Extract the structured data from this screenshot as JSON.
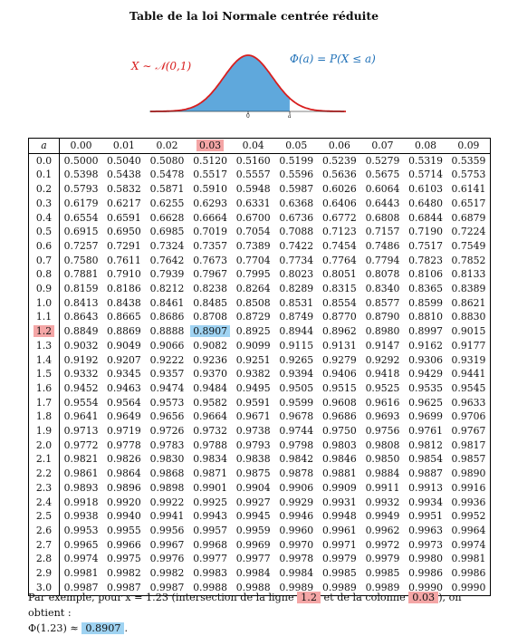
{
  "title": "Table de la loi Normale centrée réduite",
  "figure": {
    "x_label": "X ∼ 𝒩(0,1)",
    "phi_label": "Φ(a) = P(X ≤ a)",
    "tick_zero": "0",
    "tick_a": "a",
    "colors": {
      "curve": "#d81e1e",
      "fill": "#5fa8dc",
      "phi_text": "#2272b8"
    }
  },
  "table": {
    "corner": "a",
    "columns": [
      "0.00",
      "0.01",
      "0.02",
      "0.03",
      "0.04",
      "0.05",
      "0.06",
      "0.07",
      "0.08",
      "0.09"
    ],
    "highlight": {
      "row": "1.2",
      "col": "0.03",
      "row_color": "#f4a6a6",
      "cell_color": "#9fd3f2"
    },
    "rows": [
      {
        "a": "0.0",
        "v": [
          "0.5000",
          "0.5040",
          "0.5080",
          "0.5120",
          "0.5160",
          "0.5199",
          "0.5239",
          "0.5279",
          "0.5319",
          "0.5359"
        ]
      },
      {
        "a": "0.1",
        "v": [
          "0.5398",
          "0.5438",
          "0.5478",
          "0.5517",
          "0.5557",
          "0.5596",
          "0.5636",
          "0.5675",
          "0.5714",
          "0.5753"
        ]
      },
      {
        "a": "0.2",
        "v": [
          "0.5793",
          "0.5832",
          "0.5871",
          "0.5910",
          "0.5948",
          "0.5987",
          "0.6026",
          "0.6064",
          "0.6103",
          "0.6141"
        ]
      },
      {
        "a": "0.3",
        "v": [
          "0.6179",
          "0.6217",
          "0.6255",
          "0.6293",
          "0.6331",
          "0.6368",
          "0.6406",
          "0.6443",
          "0.6480",
          "0.6517"
        ]
      },
      {
        "a": "0.4",
        "v": [
          "0.6554",
          "0.6591",
          "0.6628",
          "0.6664",
          "0.6700",
          "0.6736",
          "0.6772",
          "0.6808",
          "0.6844",
          "0.6879"
        ]
      },
      {
        "a": "0.5",
        "v": [
          "0.6915",
          "0.6950",
          "0.6985",
          "0.7019",
          "0.7054",
          "0.7088",
          "0.7123",
          "0.7157",
          "0.7190",
          "0.7224"
        ]
      },
      {
        "a": "0.6",
        "v": [
          "0.7257",
          "0.7291",
          "0.7324",
          "0.7357",
          "0.7389",
          "0.7422",
          "0.7454",
          "0.7486",
          "0.7517",
          "0.7549"
        ]
      },
      {
        "a": "0.7",
        "v": [
          "0.7580",
          "0.7611",
          "0.7642",
          "0.7673",
          "0.7704",
          "0.7734",
          "0.7764",
          "0.7794",
          "0.7823",
          "0.7852"
        ]
      },
      {
        "a": "0.8",
        "v": [
          "0.7881",
          "0.7910",
          "0.7939",
          "0.7967",
          "0.7995",
          "0.8023",
          "0.8051",
          "0.8078",
          "0.8106",
          "0.8133"
        ]
      },
      {
        "a": "0.9",
        "v": [
          "0.8159",
          "0.8186",
          "0.8212",
          "0.8238",
          "0.8264",
          "0.8289",
          "0.8315",
          "0.8340",
          "0.8365",
          "0.8389"
        ]
      },
      {
        "a": "1.0",
        "v": [
          "0.8413",
          "0.8438",
          "0.8461",
          "0.8485",
          "0.8508",
          "0.8531",
          "0.8554",
          "0.8577",
          "0.8599",
          "0.8621"
        ]
      },
      {
        "a": "1.1",
        "v": [
          "0.8643",
          "0.8665",
          "0.8686",
          "0.8708",
          "0.8729",
          "0.8749",
          "0.8770",
          "0.8790",
          "0.8810",
          "0.8830"
        ]
      },
      {
        "a": "1.2",
        "v": [
          "0.8849",
          "0.8869",
          "0.8888",
          "0.8907",
          "0.8925",
          "0.8944",
          "0.8962",
          "0.8980",
          "0.8997",
          "0.9015"
        ]
      },
      {
        "a": "1.3",
        "v": [
          "0.9032",
          "0.9049",
          "0.9066",
          "0.9082",
          "0.9099",
          "0.9115",
          "0.9131",
          "0.9147",
          "0.9162",
          "0.9177"
        ]
      },
      {
        "a": "1.4",
        "v": [
          "0.9192",
          "0.9207",
          "0.9222",
          "0.9236",
          "0.9251",
          "0.9265",
          "0.9279",
          "0.9292",
          "0.9306",
          "0.9319"
        ]
      },
      {
        "a": "1.5",
        "v": [
          "0.9332",
          "0.9345",
          "0.9357",
          "0.9370",
          "0.9382",
          "0.9394",
          "0.9406",
          "0.9418",
          "0.9429",
          "0.9441"
        ]
      },
      {
        "a": "1.6",
        "v": [
          "0.9452",
          "0.9463",
          "0.9474",
          "0.9484",
          "0.9495",
          "0.9505",
          "0.9515",
          "0.9525",
          "0.9535",
          "0.9545"
        ]
      },
      {
        "a": "1.7",
        "v": [
          "0.9554",
          "0.9564",
          "0.9573",
          "0.9582",
          "0.9591",
          "0.9599",
          "0.9608",
          "0.9616",
          "0.9625",
          "0.9633"
        ]
      },
      {
        "a": "1.8",
        "v": [
          "0.9641",
          "0.9649",
          "0.9656",
          "0.9664",
          "0.9671",
          "0.9678",
          "0.9686",
          "0.9693",
          "0.9699",
          "0.9706"
        ]
      },
      {
        "a": "1.9",
        "v": [
          "0.9713",
          "0.9719",
          "0.9726",
          "0.9732",
          "0.9738",
          "0.9744",
          "0.9750",
          "0.9756",
          "0.9761",
          "0.9767"
        ]
      },
      {
        "a": "2.0",
        "v": [
          "0.9772",
          "0.9778",
          "0.9783",
          "0.9788",
          "0.9793",
          "0.9798",
          "0.9803",
          "0.9808",
          "0.9812",
          "0.9817"
        ]
      },
      {
        "a": "2.1",
        "v": [
          "0.9821",
          "0.9826",
          "0.9830",
          "0.9834",
          "0.9838",
          "0.9842",
          "0.9846",
          "0.9850",
          "0.9854",
          "0.9857"
        ]
      },
      {
        "a": "2.2",
        "v": [
          "0.9861",
          "0.9864",
          "0.9868",
          "0.9871",
          "0.9875",
          "0.9878",
          "0.9881",
          "0.9884",
          "0.9887",
          "0.9890"
        ]
      },
      {
        "a": "2.3",
        "v": [
          "0.9893",
          "0.9896",
          "0.9898",
          "0.9901",
          "0.9904",
          "0.9906",
          "0.9909",
          "0.9911",
          "0.9913",
          "0.9916"
        ]
      },
      {
        "a": "2.4",
        "v": [
          "0.9918",
          "0.9920",
          "0.9922",
          "0.9925",
          "0.9927",
          "0.9929",
          "0.9931",
          "0.9932",
          "0.9934",
          "0.9936"
        ]
      },
      {
        "a": "2.5",
        "v": [
          "0.9938",
          "0.9940",
          "0.9941",
          "0.9943",
          "0.9945",
          "0.9946",
          "0.9948",
          "0.9949",
          "0.9951",
          "0.9952"
        ]
      },
      {
        "a": "2.6",
        "v": [
          "0.9953",
          "0.9955",
          "0.9956",
          "0.9957",
          "0.9959",
          "0.9960",
          "0.9961",
          "0.9962",
          "0.9963",
          "0.9964"
        ]
      },
      {
        "a": "2.7",
        "v": [
          "0.9965",
          "0.9966",
          "0.9967",
          "0.9968",
          "0.9969",
          "0.9970",
          "0.9971",
          "0.9972",
          "0.9973",
          "0.9974"
        ]
      },
      {
        "a": "2.8",
        "v": [
          "0.9974",
          "0.9975",
          "0.9976",
          "0.9977",
          "0.9977",
          "0.9978",
          "0.9979",
          "0.9979",
          "0.9980",
          "0.9981"
        ]
      },
      {
        "a": "2.9",
        "v": [
          "0.9981",
          "0.9982",
          "0.9982",
          "0.9983",
          "0.9984",
          "0.9984",
          "0.9985",
          "0.9985",
          "0.9986",
          "0.9986"
        ]
      },
      {
        "a": "3.0",
        "v": [
          "0.9987",
          "0.9987",
          "0.9987",
          "0.9988",
          "0.9988",
          "0.9989",
          "0.9989",
          "0.9989",
          "0.9990",
          "0.9990"
        ]
      }
    ]
  },
  "note": {
    "part1": "Par exemple, pour x = 1.23 (intersection de la ligne",
    "row_ref": "1.2",
    "part2": "et de la colonne",
    "col_ref": "0.03",
    "part3": "), on obtient :",
    "part4": "Φ(1.23) ≈",
    "result": "0.8907",
    "part5": "."
  }
}
